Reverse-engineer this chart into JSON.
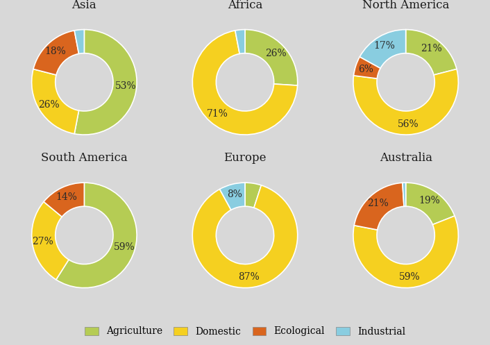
{
  "regions": [
    "Asia",
    "Africa",
    "North America",
    "South America",
    "Europe",
    "Australia"
  ],
  "categories": [
    "Agriculture",
    "Domestic",
    "Ecological",
    "Industrial"
  ],
  "colors": {
    "Agriculture": "#b5cc54",
    "Domestic": "#f5d020",
    "Ecological": "#d9651e",
    "Industrial": "#89cde0"
  },
  "data": {
    "Asia": [
      53,
      26,
      18,
      3
    ],
    "Africa": [
      26,
      71,
      0,
      3
    ],
    "North America": [
      21,
      56,
      6,
      17
    ],
    "South America": [
      59,
      27,
      14,
      0
    ],
    "Europe": [
      5,
      87,
      0,
      8
    ],
    "Australia": [
      19,
      59,
      21,
      1
    ]
  },
  "show_label": {
    "Asia": [
      true,
      true,
      true,
      false
    ],
    "Africa": [
      true,
      true,
      false,
      false
    ],
    "North America": [
      true,
      true,
      true,
      true
    ],
    "South America": [
      true,
      true,
      true,
      false
    ],
    "Europe": [
      false,
      true,
      false,
      true
    ],
    "Australia": [
      true,
      true,
      true,
      false
    ]
  },
  "pct_labels": {
    "Asia": [
      "53%",
      "26%",
      "18%",
      "3%"
    ],
    "Africa": [
      "26%",
      "71%",
      "",
      ""
    ],
    "North America": [
      "21%",
      "56%",
      "6%",
      "17%"
    ],
    "South America": [
      "59%",
      "27%",
      "14%",
      ""
    ],
    "Europe": [
      "",
      "87%",
      "",
      "8%"
    ],
    "Australia": [
      "19%",
      "59%",
      "21%",
      ""
    ]
  },
  "figsize": [
    7.06,
    4.97
  ],
  "dpi": 100,
  "fig_background": "#d8d8d8",
  "panel_background": "#ebebeb",
  "title_fontsize": 12,
  "label_fontsize": 10,
  "legend_fontsize": 10
}
